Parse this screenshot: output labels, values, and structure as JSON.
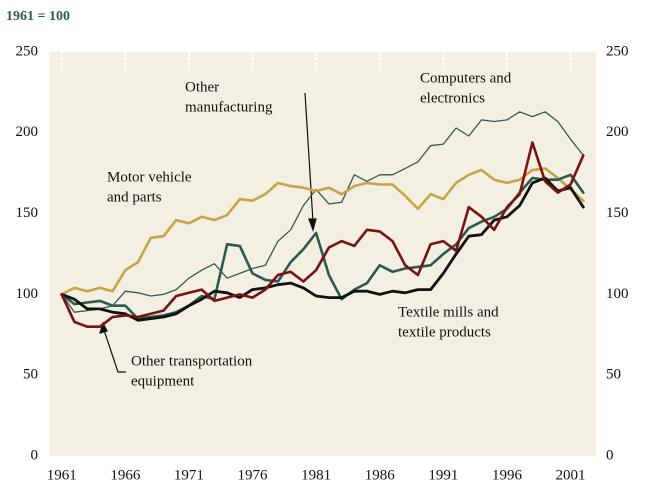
{
  "chart_data": {
    "type": "line",
    "title": "1961 = 100",
    "x": [
      1961,
      1962,
      1963,
      1964,
      1965,
      1966,
      1967,
      1968,
      1969,
      1970,
      1971,
      1972,
      1973,
      1974,
      1975,
      1976,
      1977,
      1978,
      1979,
      1980,
      1981,
      1982,
      1983,
      1984,
      1985,
      1986,
      1987,
      1988,
      1989,
      1990,
      1991,
      1992,
      1993,
      1994,
      1995,
      1996,
      1997,
      1998,
      1999,
      2000,
      2001,
      2002
    ],
    "xlim": [
      1960,
      2003
    ],
    "xticks": [
      1961,
      1966,
      1971,
      1976,
      1981,
      1986,
      1991,
      1996,
      2001
    ],
    "ylim": [
      0,
      250
    ],
    "yticks": [
      0,
      50,
      100,
      150,
      200,
      250
    ],
    "grid": false,
    "series": [
      {
        "label": [
          "Computers and",
          "electronics"
        ],
        "color": "#2f5d4f",
        "width": 1.3,
        "values": [
          100,
          89,
          90,
          91,
          93,
          102,
          101,
          99,
          100,
          103,
          110,
          115,
          119,
          110,
          113,
          116,
          118,
          133,
          140,
          155,
          165,
          156,
          157,
          174,
          170,
          174,
          174,
          178,
          182,
          192,
          193,
          203,
          198,
          208,
          207,
          208,
          213,
          210,
          213,
          207,
          196,
          186
        ]
      },
      {
        "label": [
          "Motor vehicle",
          "and parts"
        ],
        "color": "#c8a448",
        "width": 2.6,
        "values": [
          100,
          104,
          102,
          104,
          102,
          115,
          120,
          135,
          136,
          146,
          144,
          148,
          146,
          149,
          159,
          158,
          162,
          169,
          167,
          166,
          164,
          166,
          162,
          167,
          169,
          168,
          168,
          161,
          153,
          162,
          159,
          169,
          174,
          177,
          171,
          169,
          171,
          177,
          178,
          172,
          165,
          158
        ]
      },
      {
        "label": [
          "Other",
          "manufacturing"
        ],
        "color": "#2b5a50",
        "width": 2.6,
        "values": [
          100,
          94,
          95,
          96,
          93,
          93,
          85,
          86,
          87,
          89,
          93,
          99,
          97,
          131,
          130,
          113,
          109,
          108,
          120,
          128,
          138,
          112,
          97,
          103,
          107,
          118,
          114,
          116,
          117,
          118,
          125,
          131,
          141,
          145,
          148,
          153,
          163,
          172,
          171,
          171,
          174,
          163
        ]
      },
      {
        "label": [
          "Textile mills and",
          "textile products"
        ],
        "color": "#111111",
        "width": 2.8,
        "values": [
          100,
          97,
          91,
          91,
          89,
          88,
          84,
          85,
          86,
          88,
          93,
          97,
          102,
          101,
          98,
          103,
          104,
          106,
          107,
          104,
          99,
          98,
          98,
          102,
          102,
          100,
          102,
          101,
          103,
          103,
          113,
          125,
          136,
          137,
          146,
          148,
          155,
          169,
          172,
          164,
          166,
          154
        ]
      },
      {
        "label": [
          "Other transportation",
          "equipment"
        ],
        "color": "#7a1212",
        "width": 2.6,
        "values": [
          100,
          83,
          80,
          80,
          86,
          87,
          86,
          88,
          90,
          99,
          101,
          103,
          96,
          98,
          100,
          98,
          103,
          112,
          114,
          108,
          115,
          129,
          133,
          130,
          140,
          139,
          133,
          118,
          112,
          131,
          133,
          127,
          154,
          148,
          140,
          154,
          162,
          194,
          170,
          163,
          168,
          186
        ]
      }
    ]
  }
}
